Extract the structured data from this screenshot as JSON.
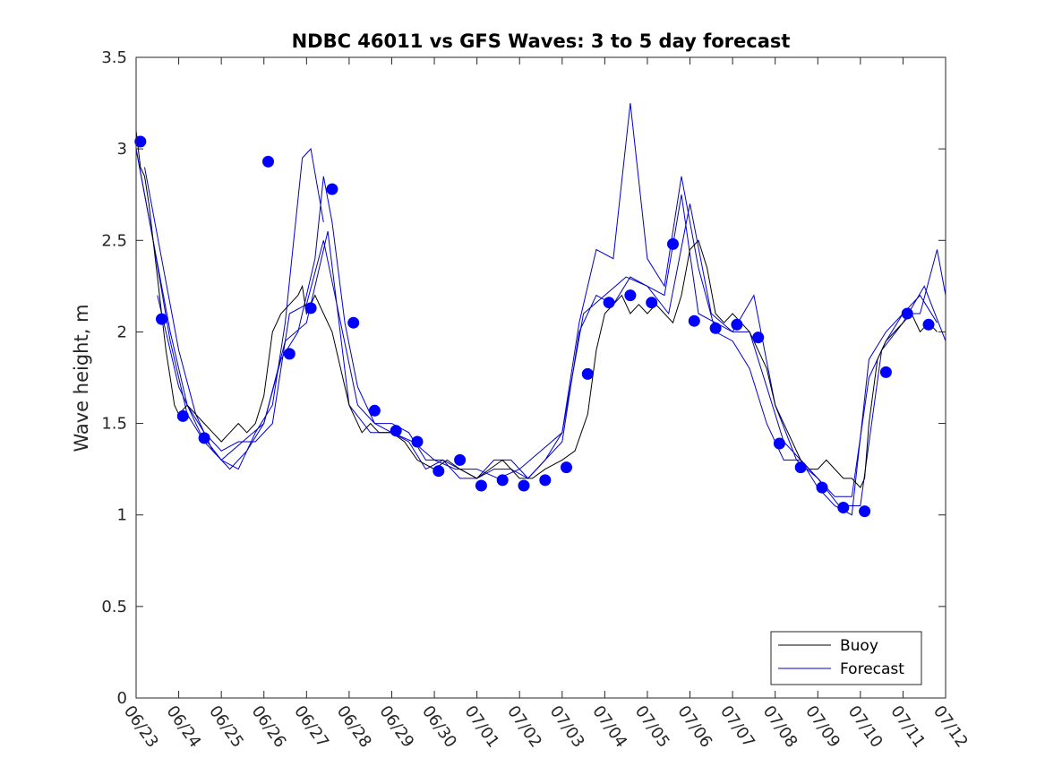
{
  "chart_data": {
    "type": "line",
    "title": "NDBC 46011 vs GFS Waves: 3 to 5 day forecast",
    "xlabel": "",
    "ylabel": "Wave height, m",
    "xlim": [
      0,
      19
    ],
    "ylim": [
      0,
      3.5
    ],
    "x_tick_labels": [
      "06/23",
      "06/24",
      "06/25",
      "06/26",
      "06/27",
      "06/28",
      "06/29",
      "06/30",
      "07/01",
      "07/02",
      "07/03",
      "07/04",
      "07/05",
      "07/06",
      "07/07",
      "07/08",
      "07/09",
      "07/10",
      "07/11",
      "07/12"
    ],
    "y_ticks": [
      0,
      0.5,
      1,
      1.5,
      2,
      2.5,
      3,
      3.5
    ],
    "y_tick_labels": [
      "0",
      "0.5",
      "1",
      "1.5",
      "2",
      "2.5",
      "3",
      "3.5"
    ],
    "grid": false,
    "legend_position": "bottom-right",
    "colors": {
      "buoy": "#000000",
      "forecast": "#0000cc",
      "points": "#0000ff",
      "axis": "#262626"
    },
    "series": [
      {
        "name": "Buoy",
        "x": [
          0,
          0.1,
          0.2,
          0.3,
          0.4,
          0.5,
          0.6,
          0.7,
          0.8,
          0.9,
          1.0,
          1.2,
          1.4,
          1.6,
          1.8,
          2.0,
          2.2,
          2.4,
          2.6,
          2.8,
          3.0,
          3.2,
          3.4,
          3.6,
          3.8,
          3.9,
          4.0,
          4.1,
          4.2,
          4.4,
          4.6,
          4.8,
          5.0,
          5.2,
          5.3,
          5.5,
          5.7,
          6.0,
          6.3,
          6.6,
          7.0,
          7.3,
          7.6,
          8.0,
          8.3,
          8.6,
          9.0,
          9.3,
          9.6,
          10.0,
          10.3,
          10.6,
          10.8,
          11.0,
          11.2,
          11.4,
          11.6,
          11.8,
          12.0,
          12.2,
          12.4,
          12.6,
          12.8,
          13.0,
          13.2,
          13.4,
          13.6,
          13.8,
          14.0,
          14.2,
          14.4,
          14.6,
          14.8,
          15.0,
          15.2,
          15.4,
          15.6,
          15.8,
          16.0,
          16.2,
          16.4,
          16.6,
          16.8,
          17.0,
          17.1,
          17.2,
          17.4,
          17.6,
          17.8,
          18.0,
          18.2,
          18.4,
          18.6,
          18.8
        ],
        "y": [
          3.1,
          2.9,
          2.85,
          2.7,
          2.5,
          2.3,
          2.1,
          1.9,
          1.75,
          1.6,
          1.55,
          1.6,
          1.55,
          1.5,
          1.45,
          1.4,
          1.45,
          1.5,
          1.45,
          1.5,
          1.65,
          2.0,
          2.1,
          2.15,
          2.2,
          2.25,
          2.1,
          2.15,
          2.2,
          2.1,
          2.0,
          1.8,
          1.6,
          1.5,
          1.45,
          1.5,
          1.45,
          1.45,
          1.4,
          1.3,
          1.25,
          1.3,
          1.25,
          1.2,
          1.25,
          1.3,
          1.2,
          1.2,
          1.25,
          1.3,
          1.35,
          1.55,
          1.9,
          2.1,
          2.15,
          2.2,
          2.1,
          2.15,
          2.1,
          2.15,
          2.1,
          2.05,
          2.2,
          2.45,
          2.5,
          2.35,
          2.1,
          2.05,
          2.1,
          2.05,
          2.0,
          1.9,
          1.8,
          1.6,
          1.5,
          1.4,
          1.3,
          1.25,
          1.25,
          1.3,
          1.25,
          1.2,
          1.2,
          1.15,
          1.2,
          1.5,
          1.85,
          1.95,
          2.0,
          2.05,
          2.1,
          2.0,
          2.05,
          2.0
        ]
      },
      {
        "name": "Forecast",
        "x": [
          0,
          0.4,
          0.8,
          1.2,
          1.6,
          2.0,
          2.4,
          2.8,
          3.2,
          3.6,
          4.0,
          4.4,
          4.8,
          5.2,
          5.6,
          6.0,
          6.4,
          6.8,
          7.2,
          7.6,
          8.0,
          8.4,
          8.8,
          9.2,
          9.6,
          10.0,
          10.4,
          10.8,
          11.2,
          11.6,
          12.0,
          12.4,
          12.8,
          13.2,
          13.6,
          14.0,
          14.4,
          14.8,
          15.2,
          15.6,
          16.0,
          16.4,
          16.8,
          17.2,
          17.6,
          18.0,
          18.4,
          18.8
        ],
        "y": [
          3.0,
          2.5,
          2.0,
          1.6,
          1.45,
          1.35,
          1.4,
          1.4,
          1.5,
          2.1,
          2.15,
          2.5,
          2.05,
          1.6,
          1.5,
          1.5,
          1.45,
          1.3,
          1.3,
          1.25,
          1.2,
          1.25,
          1.25,
          1.2,
          1.3,
          1.4,
          2.0,
          2.2,
          2.15,
          2.3,
          2.25,
          2.2,
          2.75,
          2.1,
          2.05,
          2.0,
          2.0,
          1.7,
          1.4,
          1.3,
          1.2,
          1.1,
          1.1,
          1.75,
          1.95,
          2.1,
          2.2,
          2.05
        ]
      }
    ],
    "forecast_runs": [
      {
        "x": [
          0,
          0.4,
          0.8,
          1.2,
          1.6,
          2.0,
          2.4,
          2.8,
          3.2,
          3.5,
          3.7,
          3.9,
          4.1,
          4.4
        ],
        "y": [
          3.0,
          2.5,
          1.95,
          1.55,
          1.4,
          1.3,
          1.25,
          1.45,
          1.6,
          2.05,
          2.5,
          2.95,
          3.0,
          2.6
        ]
      },
      {
        "x": [
          0.2,
          0.6,
          1.0,
          1.4,
          1.8,
          2.2,
          2.6,
          3.0,
          3.4,
          3.8,
          4.2,
          4.4,
          4.6,
          4.9,
          5.2,
          5.6,
          6.0,
          6.4,
          6.8,
          7.2,
          7.6,
          8.0,
          8.4,
          8.8,
          9.2,
          9.6,
          10.0,
          10.4,
          10.8,
          11.2,
          11.6,
          12.0,
          12.4,
          12.8,
          13.2,
          13.6,
          14.0,
          14.4,
          14.8,
          15.2,
          15.6,
          16.0,
          16.4,
          16.8,
          17.2,
          17.6,
          18.0,
          18.4,
          18.8,
          19.0
        ],
        "y": [
          2.9,
          2.4,
          1.9,
          1.55,
          1.35,
          1.25,
          1.35,
          1.5,
          1.85,
          2.0,
          2.4,
          2.85,
          2.6,
          2.05,
          1.7,
          1.5,
          1.45,
          1.4,
          1.25,
          1.3,
          1.2,
          1.2,
          1.3,
          1.3,
          1.2,
          1.3,
          1.45,
          2.05,
          2.45,
          2.4,
          3.25,
          2.4,
          2.25,
          2.85,
          2.35,
          2.0,
          1.95,
          1.8,
          1.5,
          1.3,
          1.3,
          1.15,
          1.05,
          1.0,
          1.85,
          2.0,
          2.1,
          2.1,
          2.45,
          2.2
        ]
      },
      {
        "x": [
          0.5,
          1.0,
          1.5,
          2.0,
          2.5,
          3.0,
          3.5,
          4.0,
          4.5,
          5.0,
          5.5,
          6.0,
          6.5,
          7.0,
          7.5,
          8.0,
          8.5,
          9.0,
          9.5,
          10.0,
          10.5,
          11.0,
          11.5,
          12.0,
          12.5,
          13.0,
          13.5,
          14.0,
          14.5,
          15.0,
          15.5,
          16.0,
          16.5,
          17.0,
          17.5,
          18.0,
          18.5,
          19.0
        ],
        "y": [
          2.2,
          1.7,
          1.45,
          1.3,
          1.4,
          1.5,
          1.95,
          2.05,
          2.55,
          1.6,
          1.45,
          1.45,
          1.4,
          1.3,
          1.25,
          1.25,
          1.2,
          1.25,
          1.35,
          1.45,
          2.1,
          2.2,
          2.3,
          2.25,
          2.1,
          2.7,
          2.1,
          2.0,
          2.2,
          1.6,
          1.3,
          1.2,
          1.05,
          1.05,
          1.9,
          2.05,
          2.25,
          1.95
        ]
      }
    ],
    "markers": {
      "x": [
        0.1,
        0.6,
        1.1,
        1.6,
        3.1,
        3.6,
        4.1,
        4.6,
        5.1,
        5.6,
        6.1,
        6.6,
        7.1,
        7.6,
        8.1,
        8.6,
        9.1,
        9.6,
        10.1,
        10.6,
        11.1,
        11.6,
        12.1,
        12.6,
        13.1,
        13.6,
        14.1,
        14.6,
        15.1,
        15.6,
        16.1,
        16.6,
        17.1,
        17.6,
        18.1,
        18.6
      ],
      "y": [
        3.04,
        2.07,
        1.54,
        1.42,
        2.93,
        1.88,
        2.13,
        2.78,
        2.05,
        1.57,
        1.46,
        1.4,
        1.24,
        1.3,
        1.16,
        1.19,
        1.16,
        1.19,
        1.26,
        1.77,
        2.16,
        2.2,
        2.16,
        2.48,
        2.06,
        2.02,
        2.04,
        1.97,
        1.39,
        1.26,
        1.15,
        1.04,
        1.02,
        1.78,
        2.1,
        2.04
      ]
    }
  }
}
